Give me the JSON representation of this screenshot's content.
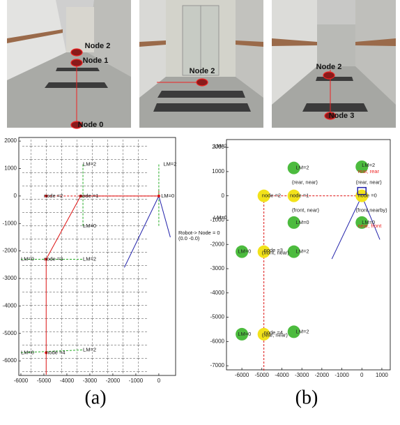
{
  "photos": [
    {
      "labels": [
        "Node 2",
        "Node 1",
        "Node 0"
      ]
    },
    {
      "labels": [
        "Node 2"
      ]
    },
    {
      "labels": [
        "Node 2",
        "Node 3"
      ]
    }
  ],
  "plot_a": {
    "xlim": [
      -6090,
      730
    ],
    "ylim": [
      -6530,
      2130
    ],
    "xticks": [
      -6000,
      -5000,
      -4000,
      -3000,
      -2000,
      -1000,
      0
    ],
    "yticks": [
      2000,
      1000,
      0,
      -1000,
      -2000,
      -3000,
      -4000,
      -5000,
      -6000
    ],
    "labels": [
      "node =2",
      "node =1",
      "LM=2",
      "LM=2",
      "LM=0",
      "LM=0",
      "Robot-> Node = 0",
      "(0.0 -0.0)",
      "LM=0",
      "LM=2",
      "node =3",
      "LM=0",
      "LM=2",
      "node =4"
    ],
    "caption": "(a)"
  },
  "plot_b": {
    "xlim": [
      -6770,
      1420
    ],
    "ylim": [
      -7170,
      2320
    ],
    "xticks": [
      -6000,
      -5000,
      -4000,
      -3000,
      -2000,
      -1000,
      0,
      1000
    ],
    "yticks": [
      2000,
      1000,
      0,
      -1000,
      -2000,
      -3000,
      -4000,
      -5000,
      -6000,
      -7000
    ],
    "landmarks": {
      "x": [
        -3400,
        0,
        -3400,
        0,
        -6000,
        -3400,
        -6000,
        -3400
      ],
      "y": [
        1150,
        1200,
        -1100,
        -1100,
        -2300,
        -2300,
        -5700,
        -5600
      ]
    },
    "nodes": {
      "x": [
        -4900,
        -3400,
        0,
        -4900,
        -4900
      ],
      "y": [
        0,
        0,
        0,
        -2300,
        -5700
      ]
    },
    "labels": [
      "LM=2",
      "LM=2",
      "LM=0",
      "LM=0",
      "LM=2",
      "LM=0",
      "LM=0",
      "LM=2",
      "LM=0",
      "LM=2",
      "node =2",
      "node =1",
      "node =0",
      "node =3",
      "node =4",
      "(rear, near)",
      "(rear, near)",
      "(front, near)",
      "(front,nearby)",
      "(front, near)",
      "(rear, near)",
      "rear,  rear",
      "near,  front"
    ],
    "caption": "(b)"
  }
}
